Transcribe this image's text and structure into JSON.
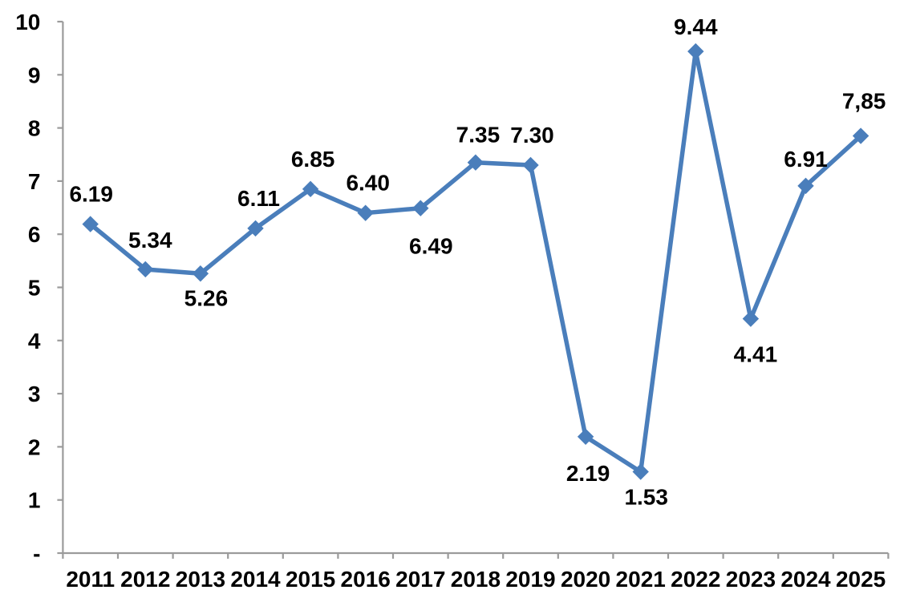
{
  "chart_data": {
    "type": "line",
    "title": "",
    "xlabel": "",
    "ylabel": "",
    "x": [
      "2011",
      "2012",
      "2013",
      "2014",
      "2015",
      "2016",
      "2017",
      "2018",
      "2019",
      "2020",
      "2021",
      "2022",
      "2023",
      "2024",
      "2025"
    ],
    "values": [
      6.19,
      5.34,
      5.26,
      6.11,
      6.85,
      6.4,
      6.49,
      7.35,
      7.3,
      2.19,
      1.53,
      9.44,
      4.41,
      6.91,
      7.85
    ],
    "data_labels": [
      "6.19",
      "5.34",
      "5.26",
      "6.11",
      "6.85",
      "6.40",
      "6.49",
      "7.35",
      "7.30",
      "2.19",
      "1.53",
      "9.44",
      "4.41",
      "6.91",
      "7,85"
    ],
    "label_dx": [
      1,
      6,
      7,
      4,
      3,
      3,
      13,
      3,
      2,
      3,
      7,
      0,
      6,
      0,
      4
    ],
    "label_dy": [
      -28,
      -27,
      40,
      -28,
      -28,
      -28,
      57,
      -25,
      -28,
      55,
      41,
      -21,
      54,
      -24,
      -34
    ],
    "ylim": [
      0,
      10
    ],
    "y_tick_labels": [
      "-",
      "1",
      "2",
      "3",
      "4",
      "5",
      "6",
      "7",
      "8",
      "9",
      "10"
    ],
    "grid": false,
    "legend_position": "none",
    "marker": "diamond",
    "series_color": "#4A7EBB",
    "axis_color": "#9B9B9B",
    "label_color": "#000000",
    "background_color": "#FFFFFF"
  }
}
